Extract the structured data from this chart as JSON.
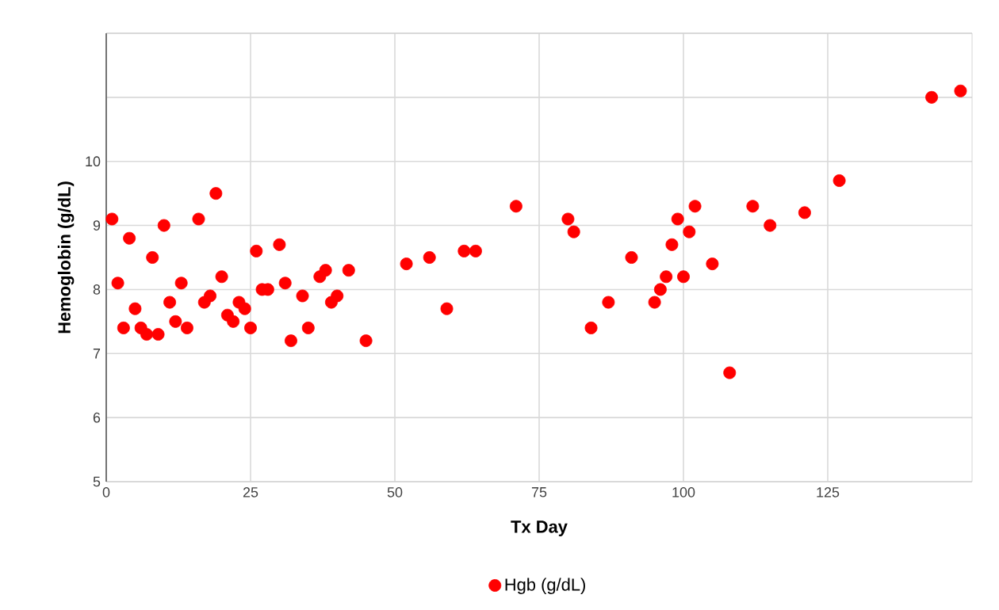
{
  "chart_data": {
    "type": "scatter",
    "xlabel": "Tx Day",
    "ylabel": "Hemoglobin (g/dL)",
    "xlim": [
      0,
      150
    ],
    "ylim": [
      5,
      12
    ],
    "xticks": [
      0,
      25,
      50,
      75,
      100,
      125
    ],
    "yticks": [
      5,
      6,
      7,
      8,
      9,
      10,
      {
        "value": 11,
        "label": null
      },
      {
        "value": 12,
        "label": null
      }
    ],
    "grid": true,
    "legend": "bottom",
    "marker": "circle",
    "series": [
      {
        "name": "Hgb (g/dL)",
        "color": "#ff0000",
        "x": [
          1,
          2,
          3,
          4,
          5,
          6,
          7,
          8,
          9,
          10,
          11,
          12,
          13,
          14,
          16,
          17,
          18,
          19,
          20,
          21,
          22,
          23,
          24,
          25,
          26,
          27,
          28,
          30,
          31,
          32,
          34,
          35,
          37,
          38,
          39,
          40,
          42,
          45,
          52,
          56,
          59,
          62,
          64,
          71,
          80,
          81,
          84,
          87,
          91,
          95,
          96,
          97,
          98,
          99,
          100,
          101,
          102,
          105,
          108,
          112,
          115,
          121,
          127,
          143,
          148
        ],
        "values": [
          9.1,
          8.1,
          7.4,
          8.8,
          7.7,
          7.4,
          7.3,
          8.5,
          7.3,
          9.0,
          7.8,
          7.5,
          8.1,
          7.4,
          9.1,
          7.8,
          7.9,
          9.5,
          8.2,
          7.6,
          7.5,
          7.8,
          7.7,
          7.4,
          8.6,
          8.0,
          8.0,
          8.7,
          8.1,
          7.2,
          7.9,
          7.4,
          8.2,
          8.3,
          7.8,
          7.9,
          8.3,
          7.2,
          8.4,
          8.5,
          7.7,
          8.6,
          8.6,
          9.3,
          9.1,
          8.9,
          7.4,
          7.8,
          8.5,
          7.8,
          8.0,
          8.2,
          8.7,
          9.1,
          8.2,
          8.9,
          9.3,
          8.4,
          6.7,
          9.3,
          9.0,
          9.2,
          9.7,
          11.0,
          11.1
        ]
      }
    ]
  }
}
